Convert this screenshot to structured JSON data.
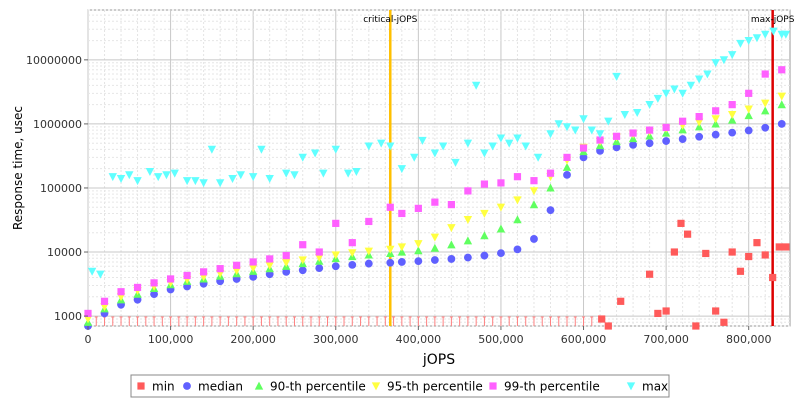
{
  "chart_data": {
    "type": "scatter",
    "title": "",
    "xlabel": "jOPS",
    "ylabel": "Response time, usec",
    "xlim": [
      0,
      850000
    ],
    "ylim": [
      700,
      60000000
    ],
    "yscale": "log",
    "grid": true,
    "legend_position": "bottom",
    "x_ticks": [
      0,
      100000,
      200000,
      300000,
      400000,
      500000,
      600000,
      700000,
      800000
    ],
    "x_tick_labels": [
      "0",
      "100,000",
      "200,000",
      "300,000",
      "400,000",
      "500,000",
      "600,000",
      "700,000",
      "800,000"
    ],
    "y_ticks": [
      1000,
      10000,
      100000,
      1000000,
      10000000
    ],
    "y_tick_labels": [
      "1000",
      "10000",
      "100000",
      "1000000",
      "10000000"
    ],
    "markers": [
      {
        "label": "critical-jOPS",
        "x": 366000,
        "color": "#ffc000"
      },
      {
        "label": "max-jOPS",
        "x": 829000,
        "color": "#dd0000"
      }
    ],
    "series": [
      {
        "name": "min",
        "color": "#ff5a5a",
        "shape": "square",
        "x": [
          622000,
          630000,
          645000,
          680000,
          690000,
          700000,
          710000,
          718000,
          726000,
          736000,
          748000,
          760000,
          770000,
          780000,
          790000,
          800000,
          810000,
          820000,
          829000,
          837000,
          845000
        ],
        "y": [
          900,
          700,
          1700,
          4500,
          1100,
          1200,
          10000,
          28000,
          19000,
          700,
          9500,
          1200,
          800,
          10000,
          5000,
          8500,
          14000,
          9000,
          4000,
          12000,
          12000
        ]
      },
      {
        "name": "median",
        "color": "#6060ff",
        "shape": "circle",
        "x": [
          0,
          20000,
          40000,
          60000,
          80000,
          100000,
          120000,
          140000,
          160000,
          180000,
          200000,
          220000,
          240000,
          260000,
          280000,
          300000,
          320000,
          340000,
          366000,
          380000,
          400000,
          420000,
          440000,
          460000,
          480000,
          500000,
          520000,
          540000,
          560000,
          580000,
          600000,
          620000,
          640000,
          660000,
          680000,
          700000,
          720000,
          740000,
          760000,
          780000,
          800000,
          820000,
          840000
        ],
        "y": [
          700,
          1100,
          1500,
          1800,
          2200,
          2600,
          2900,
          3200,
          3500,
          3800,
          4100,
          4500,
          4900,
          5200,
          5600,
          6000,
          6300,
          6600,
          6800,
          7000,
          7200,
          7500,
          7800,
          8200,
          8800,
          9600,
          11000,
          16000,
          45000,
          160000,
          300000,
          380000,
          430000,
          470000,
          500000,
          540000,
          580000,
          630000,
          680000,
          730000,
          790000,
          870000,
          1000000
        ]
      },
      {
        "name": "90-th percentile",
        "color": "#60ff60",
        "shape": "triangle",
        "x": [
          0,
          20000,
          40000,
          60000,
          80000,
          100000,
          120000,
          140000,
          160000,
          180000,
          200000,
          220000,
          240000,
          260000,
          280000,
          300000,
          320000,
          340000,
          366000,
          380000,
          400000,
          420000,
          440000,
          460000,
          480000,
          500000,
          520000,
          540000,
          560000,
          580000,
          600000,
          620000,
          640000,
          660000,
          680000,
          700000,
          720000,
          740000,
          760000,
          780000,
          800000,
          820000,
          840000
        ],
        "y": [
          800,
          1300,
          1800,
          2200,
          2700,
          3100,
          3500,
          3800,
          4200,
          4600,
          5000,
          5500,
          6000,
          6600,
          7200,
          7900,
          8500,
          9000,
          9500,
          10000,
          10500,
          11500,
          13000,
          15000,
          18000,
          23000,
          32000,
          55000,
          100000,
          210000,
          370000,
          460000,
          530000,
          590000,
          650000,
          720000,
          810000,
          900000,
          1000000,
          1150000,
          1350000,
          1600000,
          2000000
        ]
      },
      {
        "name": "95-th percentile",
        "color": "#ffff40",
        "shape": "triangle-down",
        "x": [
          0,
          20000,
          40000,
          60000,
          80000,
          100000,
          120000,
          140000,
          160000,
          180000,
          200000,
          220000,
          240000,
          260000,
          280000,
          300000,
          320000,
          340000,
          366000,
          380000,
          400000,
          420000,
          440000,
          460000,
          480000,
          500000,
          520000,
          540000,
          560000,
          580000,
          600000,
          620000,
          640000,
          660000,
          680000,
          700000,
          720000,
          740000,
          760000,
          780000,
          800000,
          820000,
          840000
        ],
        "y": [
          900,
          1400,
          2000,
          2500,
          2900,
          3300,
          3700,
          4100,
          4600,
          5100,
          5600,
          6200,
          6800,
          7500,
          8200,
          9000,
          9700,
          10300,
          11000,
          12000,
          13500,
          17000,
          24000,
          32000,
          40000,
          50000,
          65000,
          90000,
          150000,
          270000,
          430000,
          530000,
          620000,
          690000,
          760000,
          850000,
          950000,
          1060000,
          1200000,
          1400000,
          1700000,
          2100000,
          2700000
        ]
      },
      {
        "name": "99-th percentile",
        "color": "#ff60ff",
        "shape": "square",
        "x": [
          0,
          20000,
          40000,
          60000,
          80000,
          100000,
          120000,
          140000,
          160000,
          180000,
          200000,
          220000,
          240000,
          260000,
          280000,
          300000,
          320000,
          340000,
          366000,
          380000,
          400000,
          420000,
          440000,
          460000,
          480000,
          500000,
          520000,
          540000,
          560000,
          580000,
          600000,
          620000,
          640000,
          660000,
          680000,
          700000,
          720000,
          740000,
          760000,
          780000,
          800000,
          820000,
          840000
        ],
        "y": [
          1100,
          1700,
          2400,
          2800,
          3300,
          3800,
          4300,
          4900,
          5500,
          6200,
          7000,
          7800,
          8800,
          13000,
          10000,
          28000,
          14000,
          30000,
          50000,
          40000,
          48000,
          60000,
          55000,
          90000,
          115000,
          120000,
          150000,
          130000,
          170000,
          300000,
          420000,
          560000,
          640000,
          720000,
          800000,
          880000,
          1100000,
          1300000,
          1600000,
          2000000,
          3000000,
          6000000,
          7000000
        ]
      },
      {
        "name": "max",
        "color": "#60ffff",
        "shape": "triangle-down",
        "x": [
          5000,
          15000,
          30000,
          40000,
          50000,
          60000,
          75000,
          85000,
          95000,
          105000,
          120000,
          130000,
          140000,
          150000,
          160000,
          175000,
          185000,
          200000,
          210000,
          220000,
          240000,
          250000,
          260000,
          275000,
          285000,
          300000,
          315000,
          325000,
          340000,
          355000,
          366000,
          380000,
          395000,
          405000,
          420000,
          430000,
          445000,
          460000,
          470000,
          480000,
          490000,
          500000,
          510000,
          520000,
          530000,
          545000,
          560000,
          570000,
          580000,
          590000,
          600000,
          610000,
          620000,
          630000,
          640000,
          650000,
          665000,
          680000,
          690000,
          700000,
          710000,
          720000,
          730000,
          740000,
          750000,
          760000,
          770000,
          780000,
          790000,
          800000,
          810000,
          820000,
          830000,
          840000,
          845000
        ],
        "y": [
          5000,
          4500,
          150000,
          140000,
          160000,
          130000,
          180000,
          150000,
          160000,
          170000,
          130000,
          130000,
          120000,
          400000,
          120000,
          140000,
          160000,
          150000,
          400000,
          140000,
          170000,
          160000,
          300000,
          350000,
          170000,
          400000,
          170000,
          180000,
          450000,
          500000,
          450000,
          200000,
          300000,
          550000,
          350000,
          450000,
          250000,
          500000,
          4000000,
          350000,
          450000,
          600000,
          500000,
          600000,
          450000,
          300000,
          700000,
          1000000,
          900000,
          800000,
          1200000,
          800000,
          700000,
          1100000,
          5500000,
          1400000,
          1500000,
          2000000,
          2500000,
          3000000,
          3500000,
          3000000,
          4000000,
          5000000,
          6000000,
          9000000,
          10000000,
          12000000,
          18000000,
          20000000,
          22000000,
          25000000,
          28000000,
          25000000,
          25000000
        ]
      }
    ]
  }
}
